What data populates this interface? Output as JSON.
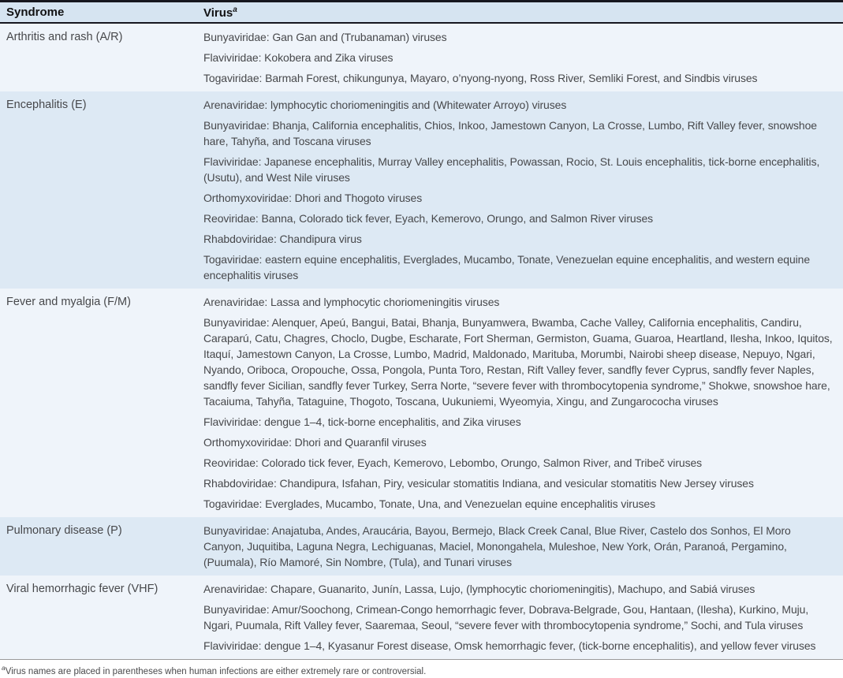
{
  "table": {
    "header": {
      "syndrome_label": "Syndrome",
      "virus_label": "Virus",
      "virus_sup": "a"
    },
    "groups": [
      {
        "syndrome": "Arthritis and rash (A/R)",
        "rows": [
          "Bunyaviridae: Gan Gan and (Trubanaman) viruses",
          "Flaviviridae: Kokobera and Zika viruses",
          "Togaviridae: Barmah Forest, chikungunya, Mayaro, o’nyong-nyong, Ross River, Semliki Forest, and Sindbis viruses"
        ]
      },
      {
        "syndrome": "Encephalitis (E)",
        "rows": [
          "Arenaviridae: lymphocytic choriomeningitis and (Whitewater Arroyo) viruses",
          "Bunyaviridae: Bhanja, California encephalitis, Chios, Inkoo, Jamestown Canyon, La Crosse, Lumbo, Rift Valley fever, snowshoe hare, Tahyña, and Toscana viruses",
          "Flaviviridae: Japanese encephalitis, Murray Valley encephalitis, Powassan, Rocio, St. Louis encephalitis, tick-borne encephalitis, (Usutu), and West Nile viruses",
          "Orthomyxoviridae: Dhori and Thogoto viruses",
          "Reoviridae: Banna, Colorado tick fever, Eyach, Kemerovo, Orungo, and Salmon River viruses",
          "Rhabdoviridae: Chandipura virus",
          "Togaviridae: eastern equine encephalitis, Everglades, Mucambo, Tonate, Venezuelan equine encephalitis, and western equine encephalitis viruses"
        ]
      },
      {
        "syndrome": "Fever and myalgia (F/M)",
        "rows": [
          "Arenaviridae: Lassa and lymphocytic choriomeningitis viruses",
          "Bunyaviridae: Alenquer, Apeú, Bangui, Batai, Bhanja, Bunyamwera, Bwamba, Cache Valley, California encephalitis, Candiru, Caraparú, Catu, Chagres, Choclo, Dugbe, Escharate, Fort Sherman, Germiston, Guama, Guaroa, Heartland, Ilesha, Inkoo, Iquitos, Itaquí, Jamestown Canyon, La Crosse, Lumbo, Madrid, Maldonado, Marituba, Morumbi, Nairobi sheep disease, Nepuyo, Ngari, Nyando, Oriboca, Oropouche, Ossa, Pongola, Punta Toro, Restan, Rift Valley fever, sandfly fever Cyprus, sandfly fever Naples, sandfly fever Sicilian, sandfly fever Turkey, Serra Norte, “severe fever with thrombocytopenia syndrome,” Shokwe, snowshoe hare, Tacaiuma, Tahyña, Tataguine, Thogoto, Toscana, Uukuniemi, Wyeomyia, Xingu, and Zungarococha viruses",
          "Flaviviridae: dengue 1–4, tick-borne encephalitis, and Zika viruses",
          "Orthomyxoviridae: Dhori and Quaranfil viruses",
          "Reoviridae: Colorado tick fever, Eyach, Kemerovo, Lebombo, Orungo, Salmon River, and Tribeč viruses",
          "Rhabdoviridae: Chandipura, Isfahan, Piry, vesicular stomatitis Indiana, and vesicular stomatitis New Jersey viruses",
          "Togaviridae: Everglades, Mucambo, Tonate, Una, and Venezuelan equine encephalitis viruses"
        ]
      },
      {
        "syndrome": "Pulmonary disease (P)",
        "rows": [
          "Bunyaviridae: Anajatuba, Andes, Araucária, Bayou, Bermejo, Black Creek Canal, Blue River, Castelo dos Sonhos, El Moro Canyon, Juquitiba, Laguna Negra, Lechiguanas, Maciel, Monongahela, Muleshoe, New York, Orán, Paranoá, Pergamino, (Puumala), Río Mamoré, Sin Nombre, (Tula), and Tunari viruses"
        ]
      },
      {
        "syndrome": "Viral hemorrhagic fever (VHF)",
        "rows": [
          "Arenaviridae: Chapare, Guanarito, Junín, Lassa, Lujo, (lymphocytic choriomeningitis), Machupo, and Sabiá viruses",
          "Bunyaviridae: Amur/Soochong, Crimean-Congo hemorrhagic fever, Dobrava-Belgrade, Gou, Hantaan, (Ilesha), Kurkino, Muju, Ngari, Puumala, Rift Valley fever, Saaremaa, Seoul, “severe fever with thrombocytopenia syndrome,” Sochi, and Tula viruses",
          "Flaviviridae: dengue 1–4, Kyasanur Forest disease, Omsk hemorrhagic fever, (tick-borne encephalitis), and yellow fever viruses"
        ]
      }
    ],
    "footnote_sup": "a",
    "footnote": "Virus names are placed in parentheses when human infections are either extremely rare or controversial."
  },
  "colors": {
    "header_bg": "#d6e4f1",
    "band_pale": "#eff4fa",
    "band_blue": "#dde9f4",
    "rule_dark": "#17171f",
    "text": "#47484b"
  }
}
